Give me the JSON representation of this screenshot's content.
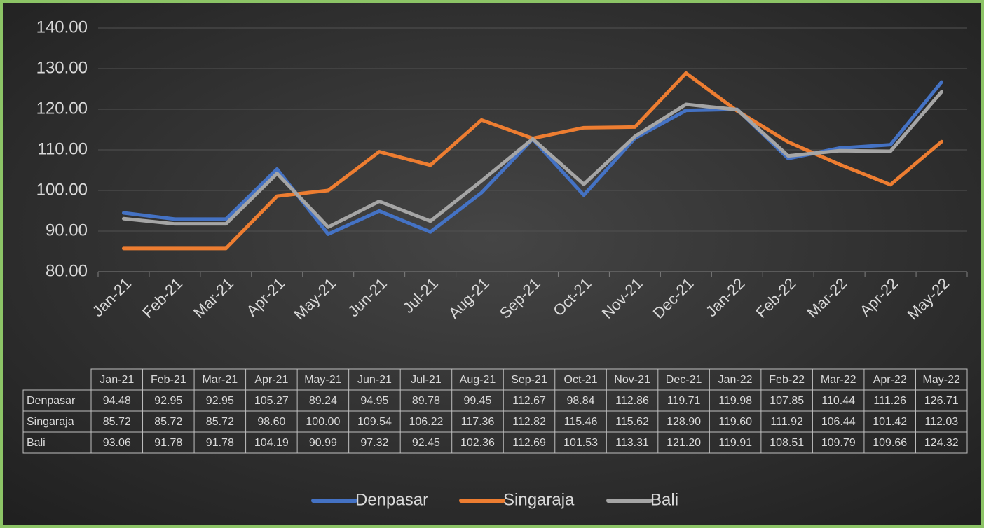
{
  "chart_data": {
    "type": "line",
    "categories": [
      "Jan-21",
      "Feb-21",
      "Mar-21",
      "Apr-21",
      "May-21",
      "Jun-21",
      "Jul-21",
      "Aug-21",
      "Sep-21",
      "Oct-21",
      "Nov-21",
      "Dec-21",
      "Jan-22",
      "Feb-22",
      "Mar-22",
      "Apr-22",
      "May-22"
    ],
    "series": [
      {
        "name": "Denpasar",
        "color": "#4472c4",
        "values": [
          94.48,
          92.95,
          92.95,
          105.27,
          89.24,
          94.95,
          89.78,
          99.45,
          112.67,
          98.84,
          112.86,
          119.71,
          119.98,
          107.85,
          110.44,
          111.26,
          126.71
        ],
        "value_labels": [
          "94.48",
          "92.95",
          "92.95",
          "105.27",
          "89.24",
          "94.95",
          "89.78",
          "99.45",
          "112.67",
          "98.84",
          "112.86",
          "119.71",
          "119.98",
          "107.85",
          "110.44",
          "111.26",
          "126.71"
        ]
      },
      {
        "name": "Singaraja",
        "color": "#ed7d31",
        "values": [
          85.72,
          85.72,
          85.72,
          98.6,
          100,
          109.54,
          106.22,
          117.36,
          112.82,
          115.46,
          115.62,
          128.9,
          119.6,
          111.92,
          106.44,
          101.42,
          112.03
        ],
        "value_labels": [
          "85.72",
          "85.72",
          "85.72",
          "98.60",
          "100.00",
          "109.54",
          "106.22",
          "117.36",
          "112.82",
          "115.46",
          "115.62",
          "128.90",
          "119.60",
          "111.92",
          "106.44",
          "101.42",
          "112.03"
        ]
      },
      {
        "name": "Bali",
        "color": "#a5a5a5",
        "values": [
          93.06,
          91.78,
          91.78,
          104.19,
          90.99,
          97.32,
          92.45,
          102.36,
          112.69,
          101.53,
          113.31,
          121.2,
          119.91,
          108.51,
          109.79,
          109.66,
          124.32
        ],
        "value_labels": [
          "93.06",
          "91.78",
          "91.78",
          "104.19",
          "90.99",
          "97.32",
          "92.45",
          "102.36",
          "112.69",
          "101.53",
          "113.31",
          "121.20",
          "119.91",
          "108.51",
          "109.79",
          "109.66",
          "124.32"
        ]
      }
    ],
    "ylim": [
      80,
      140
    ],
    "yticks": [
      {
        "value": 80,
        "label": "80.00"
      },
      {
        "value": 90,
        "label": "90.00"
      },
      {
        "value": 100,
        "label": "100.00"
      },
      {
        "value": 110,
        "label": "110.00"
      },
      {
        "value": 120,
        "label": "120.00"
      },
      {
        "value": 130,
        "label": "130.00"
      },
      {
        "value": 140,
        "label": "140.00"
      }
    ],
    "grid": true,
    "legend": "bottom",
    "data_table": true
  }
}
